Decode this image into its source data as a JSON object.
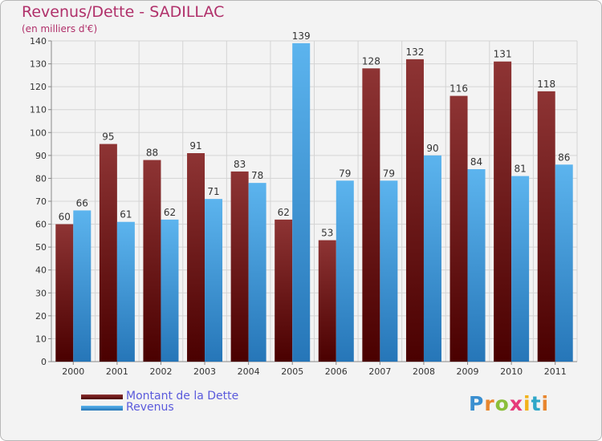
{
  "page": {
    "title": "Revenus/Dette - SADILLAC",
    "subtitle": "(en milliers d'€)"
  },
  "legend": {
    "items": [
      {
        "label": "Montant de la Dette",
        "color": "#7a1c1c"
      },
      {
        "label": "Revenus",
        "color": "#3d9ad9"
      }
    ]
  },
  "logo": {
    "text": "Proxiti",
    "letters": [
      {
        "ch": "P",
        "color": "#3a8fd0"
      },
      {
        "ch": "r",
        "color": "#e8862e"
      },
      {
        "ch": "o",
        "color": "#8bbf3a"
      },
      {
        "ch": "x",
        "color": "#e63b7a"
      },
      {
        "ch": "i",
        "color": "#f2b21b"
      },
      {
        "ch": "t",
        "color": "#2fa7c8"
      },
      {
        "ch": "i",
        "color": "#e8862e"
      }
    ]
  },
  "chart_data": {
    "type": "bar",
    "categories": [
      "2000",
      "2001",
      "2002",
      "2003",
      "2004",
      "2005",
      "2006",
      "2007",
      "2008",
      "2009",
      "2010",
      "2011"
    ],
    "series": [
      {
        "name": "Montant de la Dette",
        "values": [
          60,
          95,
          88,
          91,
          83,
          62,
          53,
          128,
          132,
          116,
          131,
          118
        ],
        "color": "#7a1c1c"
      },
      {
        "name": "Revenus",
        "values": [
          66,
          61,
          62,
          71,
          78,
          139,
          79,
          79,
          90,
          84,
          81,
          86
        ],
        "color": "#3d9ad9"
      }
    ],
    "ylim": [
      0,
      140
    ],
    "yticks": [
      0,
      10,
      20,
      30,
      40,
      50,
      60,
      70,
      80,
      90,
      100,
      110,
      120,
      130,
      140
    ],
    "grid": true,
    "legend_position": "bottom-left"
  }
}
